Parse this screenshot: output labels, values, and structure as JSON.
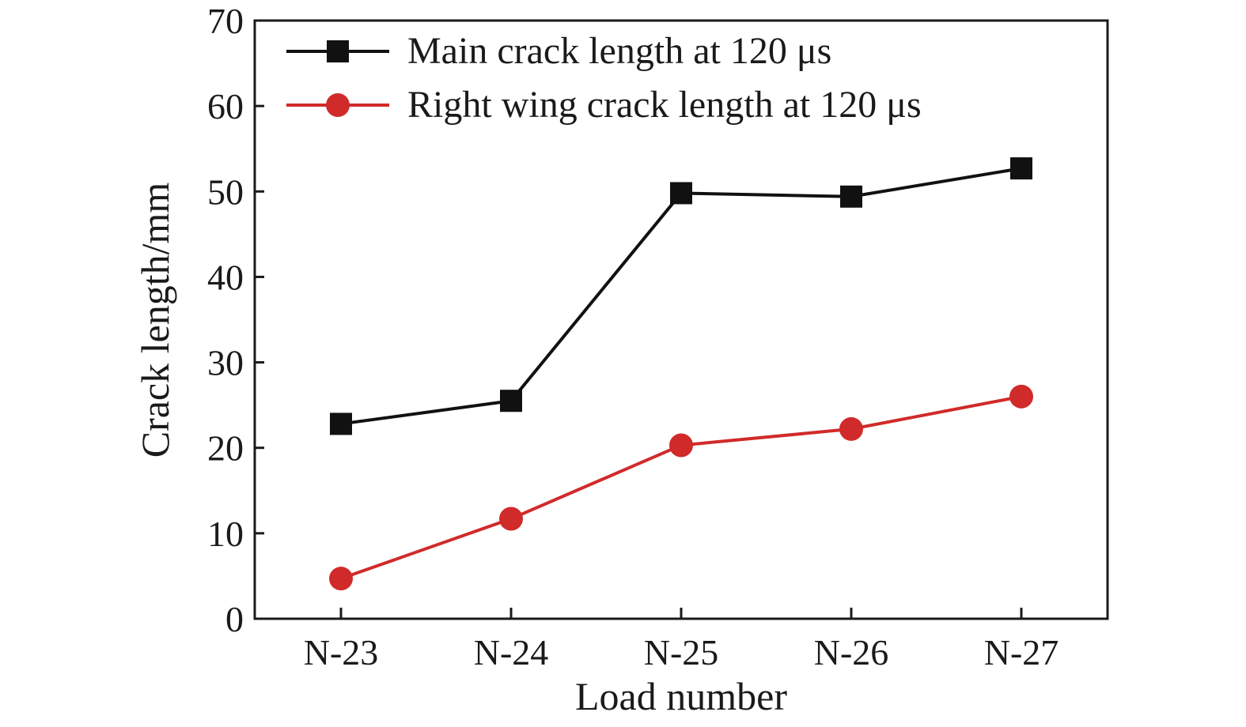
{
  "chart_data": {
    "type": "line",
    "xlabel": "Load number",
    "ylabel": "Crack length/mm",
    "categories": [
      "N-23",
      "N-24",
      "N-25",
      "N-26",
      "N-27"
    ],
    "ylim": [
      0,
      70
    ],
    "yticks": [
      0,
      10,
      20,
      30,
      40,
      50,
      60,
      70
    ],
    "grid": false,
    "legend_position": "top-left",
    "series": [
      {
        "name": "Main crack length at 120 μs",
        "color": "#111111",
        "marker": "square",
        "values": [
          22.8,
          25.5,
          49.8,
          49.4,
          52.7
        ]
      },
      {
        "name": "Right wing crack length at 120 μs",
        "color": "#d12a2a",
        "marker": "circle",
        "values": [
          4.7,
          11.7,
          20.3,
          22.2,
          26.0
        ]
      }
    ]
  }
}
